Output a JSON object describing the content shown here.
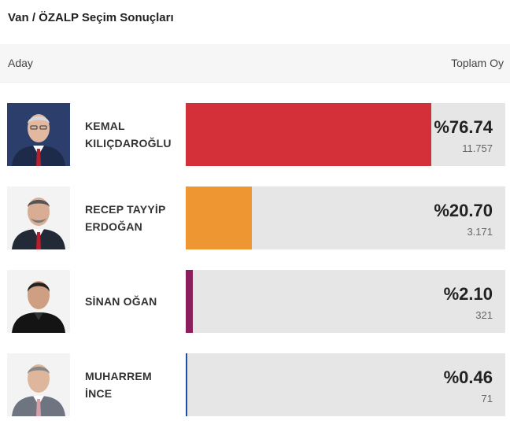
{
  "page": {
    "title": "Van / ÖZALP Seçim Sonuçları"
  },
  "table": {
    "col_candidate": "Aday",
    "col_total": "Toplam Oy"
  },
  "candidates": [
    {
      "name_line1": "KEMAL",
      "name_line2": "KILIÇDAROĞLU",
      "percent": "%76.74",
      "votes": "11.757",
      "share": 0.7674,
      "color": "#d3303a",
      "photo_bg": "#2c3e6b",
      "suit": "#1d2a4a",
      "tie": "#b5212c",
      "skin": "#e2b9a0",
      "hair": "#d8d8d8"
    },
    {
      "name_line1": "RECEP TAYYİP",
      "name_line2": "ERDOĞAN",
      "percent": "%20.70",
      "votes": "3.171",
      "share": 0.207,
      "color": "#ee9631",
      "photo_bg": "#f3f3f3",
      "suit": "#222a38",
      "tie": "#b81f2a",
      "skin": "#d9ad93",
      "hair": "#555"
    },
    {
      "name_line1": "SİNAN OĞAN",
      "name_line2": "",
      "percent": "%2.10",
      "votes": "321",
      "share": 0.021,
      "color": "#8d1e5c",
      "photo_bg": "#f3f3f3",
      "suit": "#141414",
      "tie": "#202020",
      "skin": "#cf9f83",
      "hair": "#222"
    },
    {
      "name_line1": "MUHARREM",
      "name_line2": "İNCE",
      "percent": "%0.46",
      "votes": "71",
      "share": 0.0046,
      "color": "#1e4fa8",
      "photo_bg": "#f3f3f3",
      "suit": "#6f7580",
      "tie": "#d7a0a8",
      "skin": "#ddb69c",
      "hair": "#888"
    }
  ]
}
